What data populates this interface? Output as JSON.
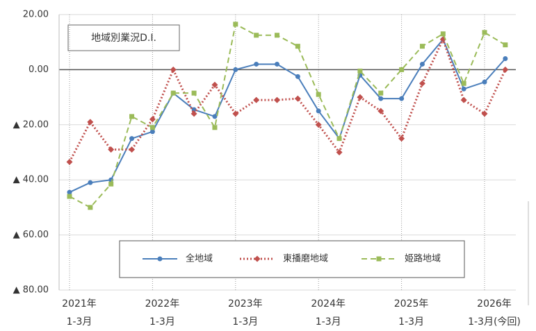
{
  "chart_data": {
    "type": "line",
    "title": "地域別業況D.I.",
    "categories": [
      "2021年\n1-3月",
      null,
      null,
      null,
      "2022年\n1-3月",
      null,
      null,
      null,
      "2023年\n1-3月",
      null,
      null,
      null,
      "2024年\n1-3月",
      null,
      null,
      null,
      "2025年\n1-3月",
      null,
      null,
      null,
      "2026年\n1-3月(今回)",
      null
    ],
    "series": [
      {
        "name": "全地域",
        "color": "#4a7ebb",
        "dash": "solid",
        "marker": "circle",
        "values": [
          -44.5,
          -41,
          -40,
          -25,
          -22.5,
          -8.5,
          -14.5,
          -17,
          0,
          2,
          2,
          -2.5,
          -15,
          -25,
          -2,
          -10.5,
          -10.5,
          2,
          11,
          -7,
          -4.5,
          4
        ]
      },
      {
        "name": "東播磨地域",
        "color": "#c0504d",
        "dash": "dot",
        "marker": "diamond",
        "values": [
          -33.5,
          -19,
          -29,
          -29,
          -18,
          0,
          -16,
          -5.5,
          -16,
          -11,
          -11,
          -10.5,
          -20,
          -30,
          -10,
          -15,
          -25,
          -5,
          11,
          -11,
          -16,
          0
        ]
      },
      {
        "name": "姫路地域",
        "color": "#9bbb59",
        "dash": "dash",
        "marker": "square",
        "values": [
          -46,
          -50,
          -41.5,
          -17,
          -21,
          -8.5,
          -8.5,
          -21,
          16.5,
          12.5,
          12.5,
          8.5,
          -9,
          -25,
          -0.5,
          -8.5,
          0,
          8.5,
          13,
          -5,
          13.5,
          9
        ]
      }
    ],
    "ylim": [
      -80,
      20
    ],
    "yticks": [
      {
        "value": 20,
        "label": "20.00"
      },
      {
        "value": 0,
        "label": "0.00"
      },
      {
        "value": -20,
        "label": "▲ 20.00"
      },
      {
        "value": -40,
        "label": "▲ 40.00"
      },
      {
        "value": -60,
        "label": "▲ 60.00"
      },
      {
        "value": -80,
        "label": "▲ 80.00"
      }
    ],
    "grid": true
  }
}
